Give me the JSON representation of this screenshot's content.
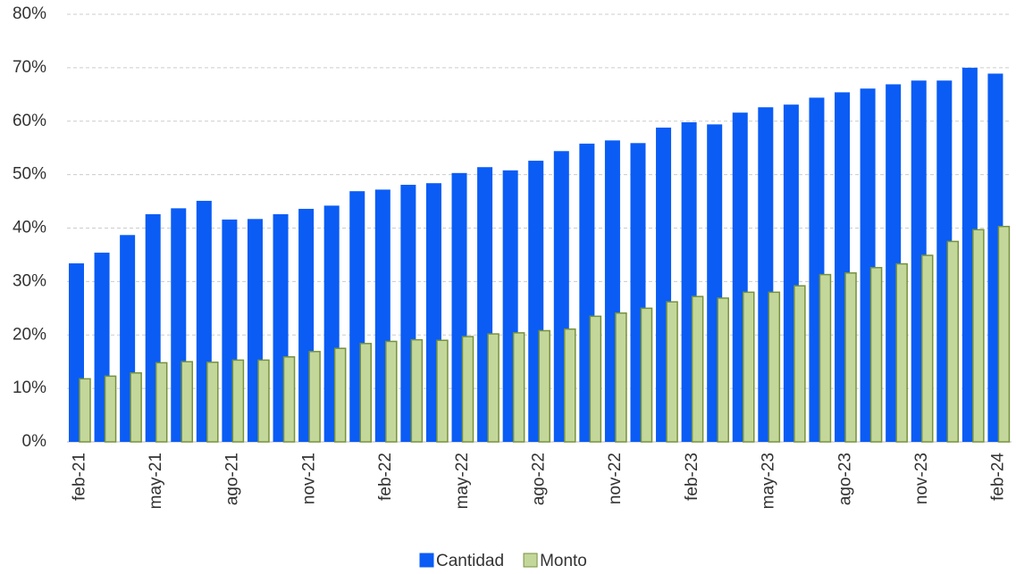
{
  "chart_data": {
    "type": "bar",
    "categories": [
      "feb-21",
      null,
      null,
      "may-21",
      null,
      null,
      "ago-21",
      null,
      null,
      "nov-21",
      null,
      null,
      "feb-22",
      null,
      null,
      "may-22",
      null,
      null,
      "ago-22",
      null,
      null,
      "nov-22",
      null,
      null,
      "feb-23",
      null,
      null,
      "may-23",
      null,
      null,
      "ago-23",
      null,
      null,
      "nov-23",
      null,
      null,
      "feb-24"
    ],
    "series": [
      {
        "name": "Cantidad",
        "color": "#0a5cf5",
        "values": [
          33.4,
          35.4,
          38.7,
          42.6,
          43.7,
          45.1,
          41.6,
          41.7,
          42.6,
          43.6,
          44.2,
          46.9,
          47.2,
          48.1,
          48.4,
          50.3,
          51.4,
          50.8,
          52.6,
          54.4,
          55.8,
          56.4,
          55.9,
          58.8,
          59.8,
          59.4,
          61.6,
          62.6,
          63.1,
          64.4,
          65.4,
          66.1,
          66.9,
          67.6,
          67.6,
          70.0,
          68.9
        ]
      },
      {
        "name": "Monto",
        "color": "#c4d79b",
        "values": [
          11.8,
          12.3,
          12.9,
          14.8,
          15.0,
          14.9,
          15.3,
          15.3,
          15.9,
          16.9,
          17.5,
          18.4,
          18.8,
          19.1,
          19.0,
          19.7,
          20.2,
          20.4,
          20.8,
          21.1,
          23.5,
          24.1,
          25.0,
          26.2,
          27.2,
          26.9,
          28.0,
          28.0,
          29.2,
          31.3,
          31.6,
          32.6,
          33.3,
          34.9,
          37.5,
          39.7,
          40.3
        ]
      }
    ],
    "ylim": [
      0,
      80
    ],
    "yticks": [
      {
        "value": 0,
        "label": "0%"
      },
      {
        "value": 10,
        "label": "10%"
      },
      {
        "value": 20,
        "label": "20%"
      },
      {
        "value": 30,
        "label": "30%"
      },
      {
        "value": 40,
        "label": "40%"
      },
      {
        "value": 50,
        "label": "50%"
      },
      {
        "value": 60,
        "label": "60%"
      },
      {
        "value": 70,
        "label": "70%"
      },
      {
        "value": 80,
        "label": "80%"
      }
    ],
    "grid": true
  }
}
